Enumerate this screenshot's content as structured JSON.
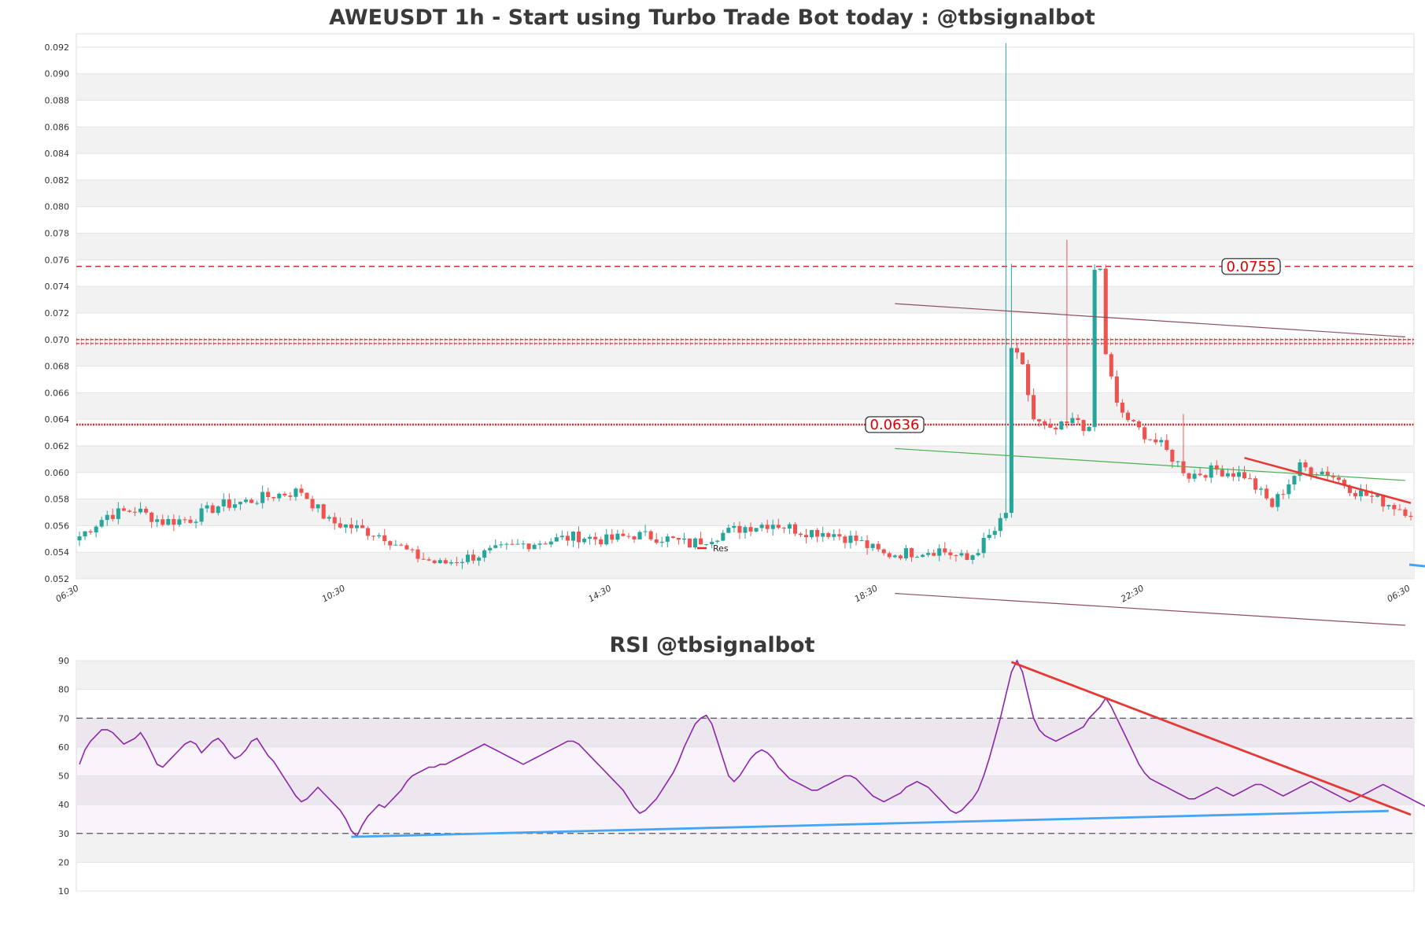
{
  "titles": {
    "main": "AWEUSDT 1h - Start using Turbo Trade Bot today : @tbsignalbot",
    "rsi": "RSI @tbsignalbot"
  },
  "legend": {
    "label": "Res"
  },
  "colors": {
    "up": "#26a69a",
    "down": "#ef5350",
    "resistance": "#d32f2f",
    "trend_green": "#4caf50",
    "trend_brown": "#8d4f5f",
    "trend_red": "#e53935",
    "trend_blue": "#42a5f5",
    "rsi_line": "#8e24aa"
  },
  "chart_data": [
    {
      "type": "candlestick",
      "title": "AWEUSDT 1h - Start using Turbo Trade Bot today : @tbsignalbot",
      "ylim": [
        0.052,
        0.093
      ],
      "yticks": [
        "0.052",
        "0.054",
        "0.056",
        "0.058",
        "0.060",
        "0.062",
        "0.064",
        "0.066",
        "0.068",
        "0.070",
        "0.072",
        "0.074",
        "0.076",
        "0.078",
        "0.080",
        "0.082",
        "0.084",
        "0.086",
        "0.088",
        "0.090",
        "0.092"
      ],
      "xticks": [
        {
          "index": 0,
          "label": "06:30"
        },
        {
          "index": 48,
          "label": "10:30"
        },
        {
          "index": 96,
          "label": "14:30"
        },
        {
          "index": 144,
          "label": "18:30"
        },
        {
          "index": 192,
          "label": "22:30"
        },
        {
          "index": 240,
          "label": "06:30"
        }
      ],
      "candle_count": 241,
      "close_path": [
        [
          0,
          0.0552
        ],
        [
          5,
          0.0568
        ],
        [
          10,
          0.0572
        ],
        [
          15,
          0.0563
        ],
        [
          20,
          0.0565
        ],
        [
          25,
          0.0575
        ],
        [
          30,
          0.0578
        ],
        [
          35,
          0.0583
        ],
        [
          40,
          0.0586
        ],
        [
          45,
          0.0563
        ],
        [
          50,
          0.0558
        ],
        [
          55,
          0.0552
        ],
        [
          60,
          0.0538
        ],
        [
          65,
          0.0531
        ],
        [
          70,
          0.0536
        ],
        [
          75,
          0.0541
        ],
        [
          80,
          0.0546
        ],
        [
          85,
          0.0549
        ],
        [
          90,
          0.0552
        ],
        [
          95,
          0.0549
        ],
        [
          100,
          0.0553
        ],
        [
          105,
          0.0551
        ],
        [
          110,
          0.0546
        ],
        [
          115,
          0.0553
        ],
        [
          120,
          0.0559
        ],
        [
          125,
          0.0562
        ],
        [
          130,
          0.0556
        ],
        [
          135,
          0.0555
        ],
        [
          140,
          0.0549
        ],
        [
          145,
          0.0538
        ],
        [
          150,
          0.054
        ],
        [
          155,
          0.0542
        ],
        [
          160,
          0.0534
        ],
        [
          165,
          0.0556
        ],
        [
          167,
          0.0568
        ],
        [
          168,
          0.0694
        ],
        [
          170,
          0.0678
        ],
        [
          172,
          0.064
        ],
        [
          175,
          0.063
        ],
        [
          180,
          0.064
        ],
        [
          182,
          0.063
        ],
        [
          183,
          0.0752
        ],
        [
          184,
          0.0752
        ],
        [
          185,
          0.069
        ],
        [
          187,
          0.065
        ],
        [
          190,
          0.0635
        ],
        [
          195,
          0.062
        ],
        [
          200,
          0.0598
        ],
        [
          205,
          0.0602
        ],
        [
          210,
          0.0598
        ],
        [
          215,
          0.0575
        ],
        [
          220,
          0.0604
        ],
        [
          225,
          0.06
        ],
        [
          230,
          0.0586
        ],
        [
          235,
          0.0578
        ],
        [
          240,
          0.057
        ]
      ],
      "spikes": [
        {
          "index": 167,
          "high": 0.0923
        },
        {
          "index": 168,
          "high": 0.0757
        },
        {
          "index": 178,
          "high": 0.0775
        },
        {
          "index": 199,
          "high": 0.0644
        }
      ],
      "resistance_levels": [
        {
          "value": 0.0755,
          "label": "0.0755",
          "style": "dashed"
        },
        {
          "value": 0.07,
          "style": "pattern"
        },
        {
          "value": 0.0697,
          "style": "pattern"
        },
        {
          "value": 0.0636,
          "label": "0.0636",
          "style": "dotted"
        }
      ],
      "trend_lines": [
        {
          "color": "brown",
          "from": [
            147,
            0.0727
          ],
          "to": [
            239,
            0.0702
          ]
        },
        {
          "color": "green",
          "from": [
            147,
            0.0618
          ],
          "to": [
            239,
            0.0594
          ]
        },
        {
          "color": "red",
          "from": [
            210,
            0.0611
          ],
          "to": [
            240,
            0.0577
          ]
        },
        {
          "color": "brown",
          "from": [
            147,
            0.0509
          ],
          "to": [
            239,
            0.0485
          ]
        }
      ]
    },
    {
      "type": "line",
      "title": "RSI @tbsignalbot",
      "ylim": [
        10,
        90
      ],
      "yticks": [
        "10",
        "20",
        "30",
        "40",
        "50",
        "60",
        "70",
        "80",
        "90"
      ],
      "levels": [
        30,
        70
      ],
      "values": [
        54,
        59,
        62,
        64,
        66,
        66,
        65,
        63,
        61,
        62,
        63,
        65,
        62,
        58,
        54,
        53,
        55,
        57,
        59,
        61,
        62,
        61,
        58,
        60,
        62,
        63,
        61,
        58,
        56,
        57,
        59,
        62,
        63,
        60,
        57,
        55,
        52,
        49,
        46,
        43,
        41,
        42,
        44,
        46,
        44,
        42,
        40,
        38,
        35,
        31,
        29,
        33,
        36,
        38,
        40,
        39,
        41,
        43,
        45,
        48,
        50,
        51,
        52,
        53,
        53,
        54,
        54,
        55,
        56,
        57,
        58,
        59,
        60,
        61,
        60,
        59,
        58,
        57,
        56,
        55,
        54,
        55,
        56,
        57,
        58,
        59,
        60,
        61,
        62,
        62,
        61,
        59,
        57,
        55,
        53,
        51,
        49,
        47,
        45,
        42,
        39,
        37,
        38,
        40,
        42,
        45,
        48,
        51,
        55,
        60,
        64,
        68,
        70,
        71,
        68,
        62,
        56,
        50,
        48,
        50,
        53,
        56,
        58,
        59,
        58,
        56,
        53,
        51,
        49,
        48,
        47,
        46,
        45,
        45,
        46,
        47,
        48,
        49,
        50,
        50,
        49,
        47,
        45,
        43,
        42,
        41,
        42,
        43,
        44,
        46,
        47,
        48,
        47,
        46,
        44,
        42,
        40,
        38,
        37,
        38,
        40,
        42,
        45,
        50,
        56,
        63,
        70,
        78,
        86,
        90,
        86,
        78,
        70,
        66,
        64,
        63,
        62,
        63,
        64,
        65,
        66,
        67,
        70,
        72,
        74,
        77,
        74,
        70,
        66,
        62,
        58,
        54,
        51,
        49,
        48,
        47,
        46,
        45,
        44,
        43,
        42,
        42,
        43,
        44,
        45,
        46,
        45,
        44,
        43,
        44,
        45,
        46,
        47,
        47,
        46,
        45,
        44,
        43,
        44,
        45,
        46,
        47,
        48,
        47,
        46,
        45,
        44,
        43,
        42,
        41,
        42,
        43,
        44,
        45,
        46,
        47,
        46,
        45,
        44,
        43,
        42,
        41,
        40,
        39,
        38,
        37,
        38,
        39,
        40
      ],
      "trend_lines": [
        {
          "color": "red",
          "from": [
            168,
            89.5
          ],
          "to": [
            240,
            36.5
          ]
        },
        {
          "color": "blue",
          "from": [
            49,
            28.8
          ],
          "to": [
            236,
            37.8
          ]
        }
      ]
    }
  ]
}
